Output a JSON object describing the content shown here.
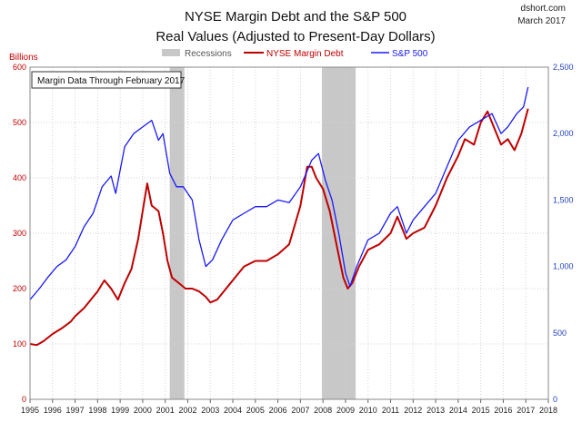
{
  "chart_data": {
    "type": "line",
    "title": "NYSE Margin Debt and the S&P 500",
    "subtitle": "Real Values (Adjusted to Present-Day Dollars)",
    "source": "dshort.com",
    "date": "March 2017",
    "annotation": "Margin Data Through February 2017",
    "y_left_label": "Billions",
    "y_left_lim": [
      0,
      600
    ],
    "y_left_ticks": [
      "0",
      "100",
      "200",
      "300",
      "400",
      "500",
      "600"
    ],
    "y_right_lim": [
      0,
      2500
    ],
    "y_right_ticks": [
      "0",
      "500",
      "1,000",
      "1,500",
      "2,000",
      "2,500"
    ],
    "x_lim": [
      1995,
      2018
    ],
    "x_ticks": [
      "1995",
      "1996",
      "1997",
      "1998",
      "1999",
      "2000",
      "2001",
      "2002",
      "2003",
      "2004",
      "2005",
      "2006",
      "2007",
      "2008",
      "2009",
      "2010",
      "2011",
      "2012",
      "2013",
      "2014",
      "2015",
      "2016",
      "2017",
      "2018"
    ],
    "grid": true,
    "legend_position": "top",
    "recessions": {
      "name": "Recessions",
      "color": "#c8c8c8",
      "periods": [
        [
          2001.2,
          2001.85
        ],
        [
          2007.95,
          2009.45
        ]
      ]
    },
    "series": [
      {
        "name": "NYSE Margin Debt",
        "axis": "left",
        "color": "#c00000",
        "x": [
          1995.0,
          1995.3,
          1995.6,
          1996.0,
          1996.4,
          1996.8,
          1997.0,
          1997.4,
          1997.8,
          1998.0,
          1998.3,
          1998.6,
          1998.9,
          1999.2,
          1999.5,
          1999.8,
          2000.0,
          2000.2,
          2000.4,
          2000.7,
          2000.9,
          2001.1,
          2001.3,
          2001.6,
          2001.9,
          2002.2,
          2002.5,
          2002.8,
          2003.0,
          2003.3,
          2003.6,
          2004.0,
          2004.5,
          2005.0,
          2005.5,
          2006.0,
          2006.5,
          2007.0,
          2007.3,
          2007.5,
          2007.7,
          2008.0,
          2008.3,
          2008.6,
          2008.9,
          2009.1,
          2009.3,
          2009.6,
          2010.0,
          2010.5,
          2011.0,
          2011.3,
          2011.7,
          2012.0,
          2012.5,
          2013.0,
          2013.5,
          2014.0,
          2014.3,
          2014.7,
          2015.0,
          2015.3,
          2015.6,
          2015.9,
          2016.2,
          2016.5,
          2016.8,
          2017.1
        ],
        "values": [
          100,
          98,
          105,
          118,
          128,
          140,
          150,
          165,
          185,
          195,
          215,
          200,
          180,
          210,
          235,
          290,
          340,
          390,
          350,
          340,
          300,
          250,
          220,
          210,
          200,
          200,
          195,
          185,
          175,
          180,
          195,
          215,
          240,
          250,
          250,
          262,
          280,
          350,
          420,
          420,
          400,
          380,
          340,
          280,
          220,
          200,
          210,
          240,
          270,
          280,
          300,
          330,
          290,
          300,
          310,
          350,
          400,
          440,
          470,
          460,
          500,
          520,
          490,
          460,
          470,
          450,
          480,
          525
        ]
      },
      {
        "name": "S&P 500",
        "axis": "right",
        "color": "#1a1aff",
        "x": [
          1995.0,
          1995.4,
          1995.8,
          1996.2,
          1996.6,
          1997.0,
          1997.4,
          1997.8,
          1998.2,
          1998.6,
          1998.8,
          1999.2,
          1999.6,
          2000.0,
          2000.4,
          2000.7,
          2000.9,
          2001.2,
          2001.5,
          2001.8,
          2002.2,
          2002.5,
          2002.8,
          2003.1,
          2003.5,
          2004.0,
          2004.5,
          2005.0,
          2005.5,
          2006.0,
          2006.5,
          2007.0,
          2007.5,
          2007.8,
          2008.1,
          2008.4,
          2008.7,
          2009.0,
          2009.2,
          2009.5,
          2010.0,
          2010.5,
          2011.0,
          2011.3,
          2011.7,
          2012.0,
          2012.5,
          2013.0,
          2013.5,
          2014.0,
          2014.5,
          2015.0,
          2015.5,
          2015.9,
          2016.2,
          2016.6,
          2016.9,
          2017.1
        ],
        "values": [
          750,
          830,
          920,
          1000,
          1050,
          1150,
          1300,
          1400,
          1600,
          1680,
          1550,
          1900,
          2000,
          2050,
          2100,
          1950,
          2000,
          1700,
          1600,
          1600,
          1500,
          1200,
          1000,
          1050,
          1200,
          1350,
          1400,
          1450,
          1450,
          1500,
          1480,
          1600,
          1800,
          1850,
          1650,
          1500,
          1250,
          950,
          850,
          1000,
          1200,
          1250,
          1400,
          1450,
          1250,
          1350,
          1450,
          1550,
          1750,
          1950,
          2050,
          2100,
          2150,
          2000,
          2050,
          2150,
          2200,
          2350
        ]
      }
    ]
  }
}
